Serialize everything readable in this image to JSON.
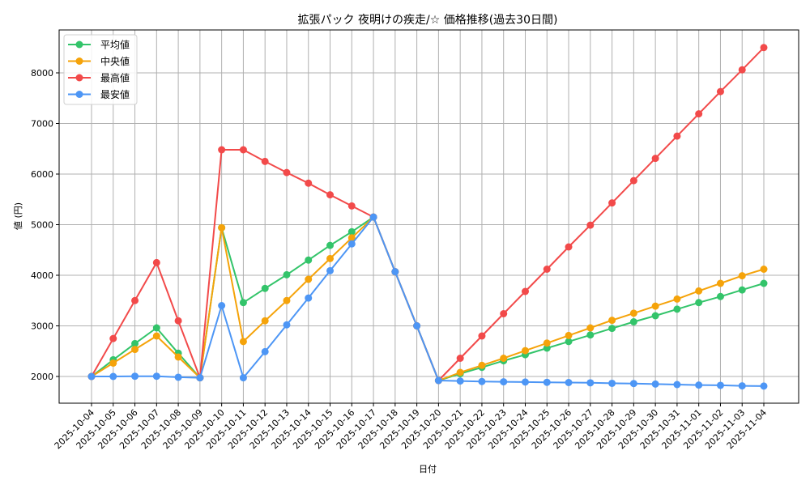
{
  "chart_data": {
    "type": "line",
    "title": "拡張パック 夜明けの疾走/☆ 価格推移(過去30日間)",
    "xlabel": "日付",
    "ylabel": "値 (円)",
    "ylim": [
      1470,
      8850
    ],
    "yticks": [
      2000,
      3000,
      4000,
      5000,
      6000,
      7000,
      8000
    ],
    "grid": true,
    "legend_position": "upper left",
    "x": [
      "2025-10-04",
      "2025-10-05",
      "2025-10-06",
      "2025-10-07",
      "2025-10-08",
      "2025-10-09",
      "2025-10-10",
      "2025-10-11",
      "2025-10-12",
      "2025-10-13",
      "2025-10-14",
      "2025-10-15",
      "2025-10-16",
      "2025-10-17",
      "2025-10-18",
      "2025-10-19",
      "2025-10-20",
      "2025-10-21",
      "2025-10-22",
      "2025-10-23",
      "2025-10-24",
      "2025-10-25",
      "2025-10-26",
      "2025-10-27",
      "2025-10-28",
      "2025-10-29",
      "2025-10-30",
      "2025-10-31",
      "2025-11-01",
      "2025-11-02",
      "2025-11-03",
      "2025-11-04"
    ],
    "series": [
      {
        "name": "平均値",
        "color": "#33c46a",
        "values": [
          2000,
          2330,
          2650,
          2960,
          2460,
          1975,
          4940,
          3460,
          3740,
          4010,
          4300,
          4590,
          4860,
          5150,
          4070,
          3000,
          1920,
          2055,
          2180,
          2310,
          2430,
          2560,
          2690,
          2820,
          2950,
          3080,
          3200,
          3330,
          3460,
          3580,
          3710,
          3840
        ]
      },
      {
        "name": "中央値",
        "color": "#f5a30a",
        "values": [
          2000,
          2265,
          2535,
          2800,
          2385,
          1975,
          4940,
          2690,
          3100,
          3500,
          3920,
          4330,
          4740,
          5150,
          4070,
          3000,
          1920,
          2080,
          2220,
          2360,
          2510,
          2660,
          2810,
          2960,
          3110,
          3250,
          3390,
          3530,
          3690,
          3840,
          3990,
          4120
        ]
      },
      {
        "name": "最高値",
        "color": "#f24a4a",
        "values": [
          2000,
          2750,
          3500,
          4250,
          3100,
          1975,
          6480,
          6480,
          6250,
          6030,
          5820,
          5590,
          5370,
          5150,
          4070,
          3000,
          1920,
          2360,
          2800,
          3240,
          3680,
          4120,
          4560,
          4990,
          5430,
          5870,
          6310,
          6750,
          7190,
          7630,
          8060,
          8500
        ]
      },
      {
        "name": "最安値",
        "color": "#4d96f5",
        "values": [
          2000,
          2000,
          2005,
          2005,
          1985,
          1975,
          3400,
          1975,
          2490,
          3020,
          3550,
          4090,
          4620,
          5150,
          4070,
          3000,
          1920,
          1910,
          1900,
          1895,
          1890,
          1885,
          1880,
          1875,
          1865,
          1860,
          1850,
          1840,
          1830,
          1825,
          1815,
          1810
        ]
      }
    ]
  }
}
